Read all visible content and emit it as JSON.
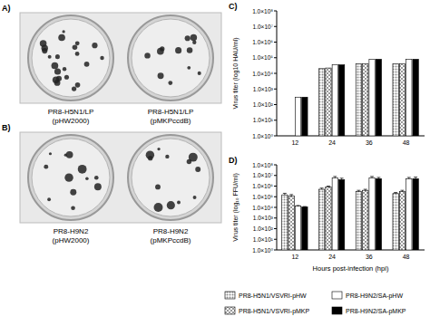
{
  "panels": [
    {
      "label": "A)",
      "wells": [
        {
          "line1": "PR8-H5N1/LP",
          "line2": "(pHW2000)"
        },
        {
          "line1": "PR8-H5N1/LP",
          "line2": "(pMKPccdB)"
        }
      ]
    },
    {
      "label": "B)",
      "wells": [
        {
          "line1": "PR8-H9N2",
          "line2": "(pHW2000)"
        },
        {
          "line1": "PR8-H9N2",
          "line2": "(pMKPccdB)"
        }
      ]
    }
  ],
  "chart_data": [
    {
      "type": "bar",
      "title": "C)",
      "y_label": "Virus titer (log10 HAU/ml)",
      "log": "y",
      "categories": [
        "12",
        "24",
        "36",
        "48"
      ],
      "ylim": [
        1,
        100000000
      ],
      "yticks": [
        {
          "value": 1,
          "label": "1.0×10⁰"
        },
        {
          "value": 10,
          "label": "1.0×10¹"
        },
        {
          "value": 100,
          "label": "1.0×10²"
        },
        {
          "value": 1000,
          "label": "1.0×10³"
        },
        {
          "value": 10000,
          "label": "1.0×10⁴"
        },
        {
          "value": 100000,
          "label": "1.0×10⁵"
        },
        {
          "value": 1000000,
          "label": "1.0×10⁶"
        },
        {
          "value": 10000000,
          "label": "1.0×10⁷"
        },
        {
          "value": 100000000,
          "label": "1.0×10⁸"
        }
      ],
      "series": [
        {
          "color": "#8a8a8a",
          "values": [
            null,
            20000,
            40000,
            40000
          ]
        },
        {
          "color": "#9a9a9a",
          "values": [
            null,
            22000,
            40000,
            40000
          ]
        },
        {
          "color": "#ffffff",
          "values": [
            300,
            35000,
            80000,
            80000
          ]
        },
        {
          "color": "#000000",
          "values": [
            300,
            35000,
            80000,
            80000
          ]
        }
      ]
    },
    {
      "type": "bar",
      "title": "D)",
      "y_label": "Virus titer (log₁₀ FFU/ml)",
      "x_label": "Hours post-infection (hpi)",
      "log": "y",
      "legend": "bottom",
      "categories": [
        "12",
        "24",
        "36",
        "48"
      ],
      "ylim": [
        1,
        100000000
      ],
      "yticks": [
        {
          "value": 1,
          "label": "1.0×10⁰"
        },
        {
          "value": 10,
          "label": "1.0×10¹"
        },
        {
          "value": 100,
          "label": "1.0×10²"
        },
        {
          "value": 1000,
          "label": "1.0×10³"
        },
        {
          "value": 10000,
          "label": "1.0×10⁴"
        },
        {
          "value": 100000,
          "label": "1.0×10⁵"
        },
        {
          "value": 1000000,
          "label": "1.0×10⁶"
        },
        {
          "value": 10000000,
          "label": "1.0×10⁷"
        },
        {
          "value": 100000000,
          "label": "1.0×10⁸"
        }
      ],
      "series": [
        {
          "name": "PR8-H5N1/VSVRI-pHW",
          "color": "#8a8a8a",
          "values": [
            150000,
            500000,
            300000,
            200000
          ],
          "errors": [
            60000,
            150000,
            100000,
            50000
          ]
        },
        {
          "name": "PR8-H5N1/VSVRI-pMKP",
          "color": "#9a9a9a",
          "values": [
            120000,
            800000,
            400000,
            300000
          ],
          "errors": [
            40000,
            200000,
            100000,
            100000
          ]
        },
        {
          "name": "PR8-H9N2/SA-pHW",
          "color": "#ffffff",
          "values": [
            13000,
            6000000,
            6000000,
            5000000
          ],
          "errors": [
            2000,
            2000000,
            2000000,
            1500000
          ]
        },
        {
          "name": "PR8-H9N2/SA-pMKP",
          "color": "#000000",
          "values": [
            11000,
            4000000,
            5000000,
            5000000
          ],
          "errors": [
            1000,
            1500000,
            1500000,
            2000000
          ]
        }
      ]
    }
  ]
}
